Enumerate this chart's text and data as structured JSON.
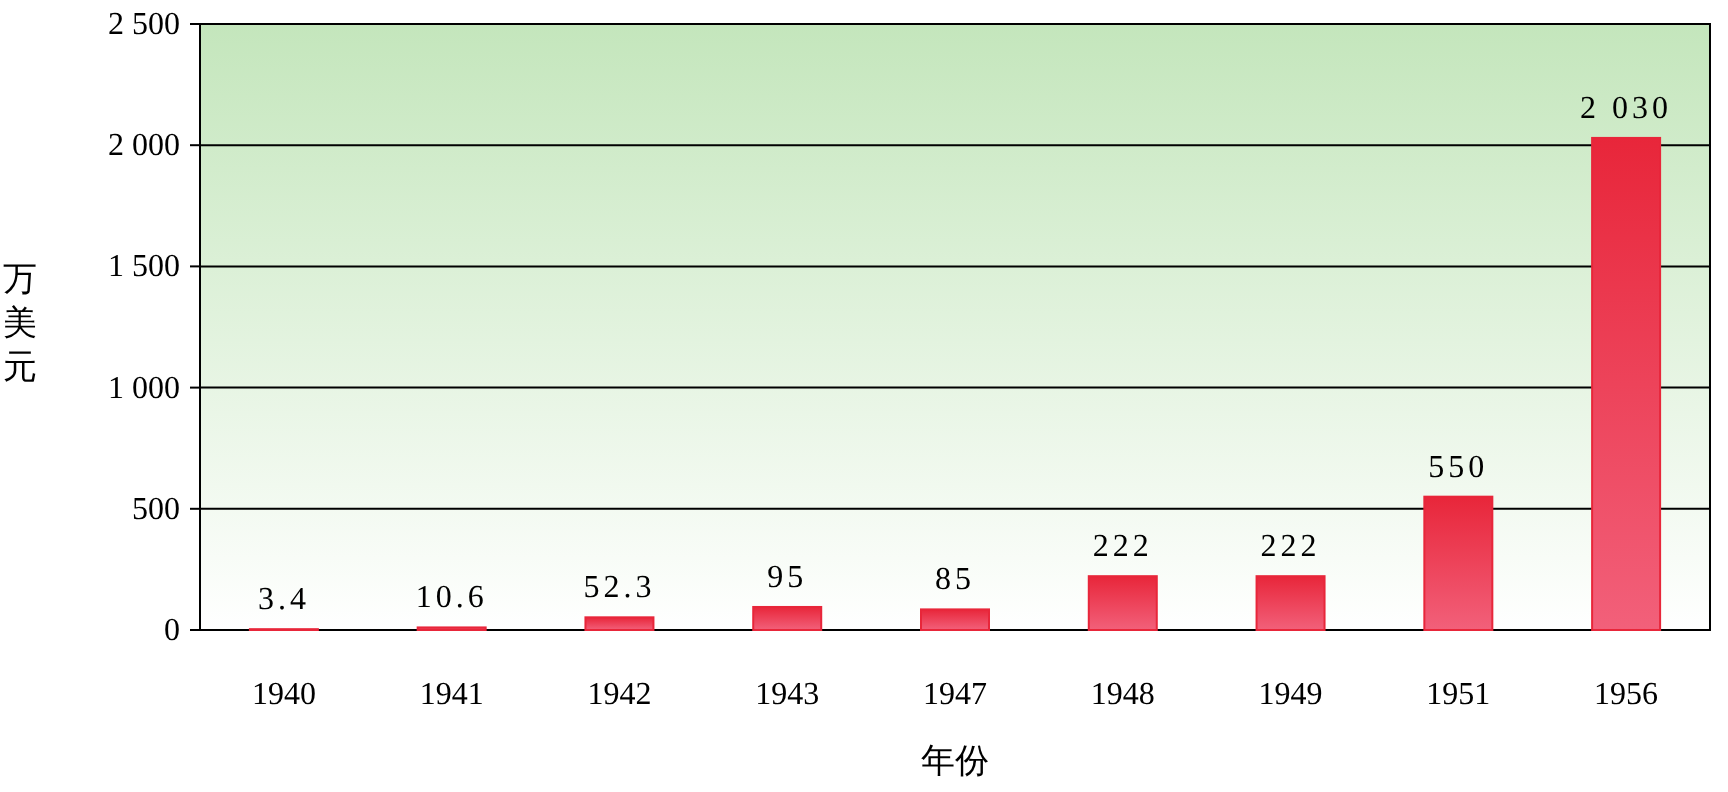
{
  "chart_data": {
    "type": "bar",
    "xlabel": "年份",
    "ylabel": "万美元",
    "categories": [
      "1940",
      "1941",
      "1942",
      "1943",
      "1947",
      "1948",
      "1949",
      "1951",
      "1956"
    ],
    "values": [
      3.4,
      10.6,
      52.3,
      95,
      85,
      222,
      222,
      550,
      2030
    ],
    "color": "#e8263a",
    "ylim": [
      0,
      2500
    ],
    "yticks": [
      0,
      500,
      {
        "value": 1000,
        "label": "1 000"
      },
      {
        "value": 1500,
        "label": "1 500"
      },
      {
        "value": 2000,
        "label": "2 000"
      },
      {
        "value": 2500,
        "label": "2 500"
      }
    ],
    "value_labels": [
      "3.4",
      "10.6",
      "52.3",
      "95",
      "85",
      "222",
      "222",
      "550",
      "2 030"
    ],
    "grid": "y"
  }
}
